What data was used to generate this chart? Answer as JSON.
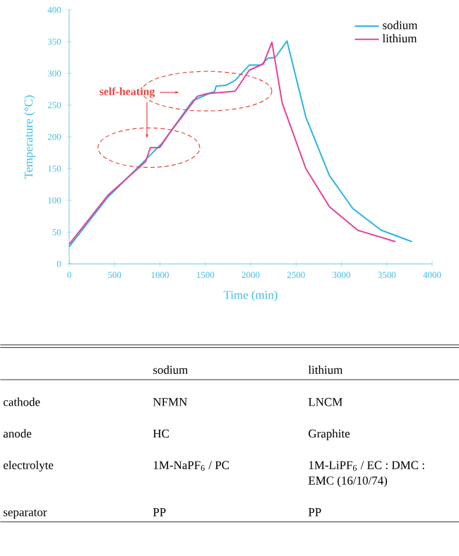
{
  "chart_data": [
    {
      "type": "line",
      "xlabel": "Time (min)",
      "ylabel": "Temperature (°C)",
      "xlim": [
        0,
        4000
      ],
      "ylim": [
        0,
        400
      ],
      "xticks": [
        0,
        500,
        1000,
        1500,
        2000,
        2500,
        3000,
        3500,
        4000
      ],
      "yticks": [
        0,
        50,
        100,
        150,
        200,
        250,
        300,
        350,
        400
      ],
      "legend": "top right",
      "annotations": [
        "self-heating"
      ],
      "series": [
        {
          "name": "sodium",
          "color": "#29b5e0",
          "x": [
            0,
            426,
            842,
            1023,
            1361,
            1569,
            1600,
            1620,
            1725,
            1829,
            1984,
            2114,
            2192,
            2270,
            2400,
            2608,
            2868,
            3127,
            3439,
            3777
          ],
          "values": [
            27,
            105,
            164,
            190,
            257,
            270,
            271,
            280,
            281,
            289,
            313,
            313,
            324,
            325,
            351,
            231,
            139,
            87,
            53,
            35
          ]
        },
        {
          "name": "lithium",
          "color": "#e8409a",
          "x": [
            0,
            426,
            842,
            894,
            998,
            1101,
            1413,
            1517,
            1829,
            1984,
            2140,
            2234,
            2348,
            2608,
            2868,
            3179,
            3595
          ],
          "values": [
            31,
            108,
            161,
            183,
            183,
            205,
            264,
            268,
            272,
            305,
            315,
            349,
            253,
            150,
            90,
            53,
            35
          ]
        }
      ]
    },
    {
      "type": "other",
      "categories": [
        "cathode",
        "anode",
        "electrolyte",
        "separator"
      ],
      "annotations": [
        "sodium",
        "lithium",
        "NFMN",
        "LNCM",
        "HC",
        "Graphite",
        "1M-NaPF$_{6}$ / PC",
        "1M-LiPF$_{6}$ / EC : DMC : EMC (16/10/74)",
        "PP",
        "PP"
      ]
    }
  ]
}
